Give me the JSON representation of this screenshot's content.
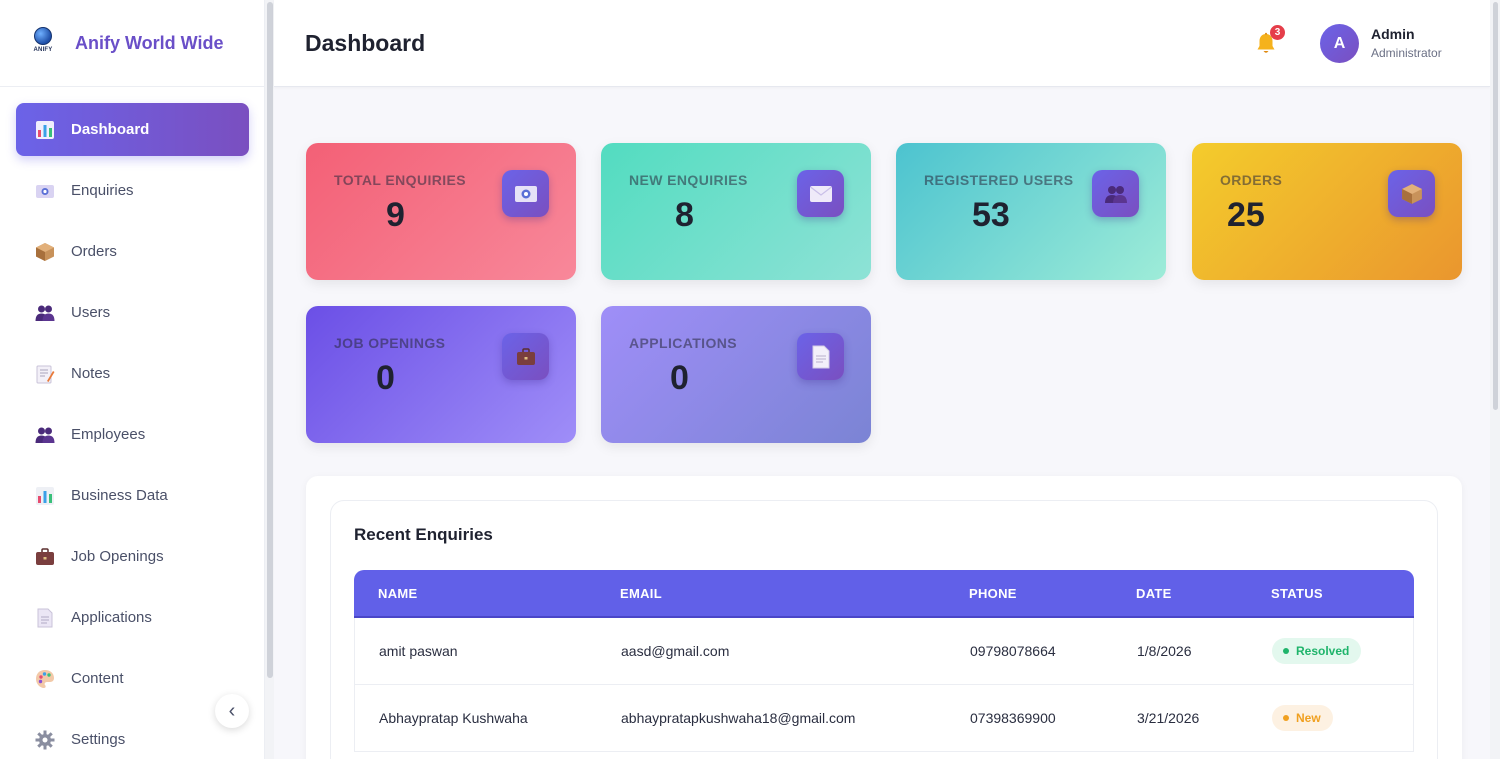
{
  "brand": {
    "name": "Anify World Wide",
    "logo_text": "ANIFY"
  },
  "sidebar": {
    "items": [
      {
        "label": "Dashboard",
        "icon": "bar-chart-icon",
        "active": true
      },
      {
        "label": "Enquiries",
        "icon": "inbox-icon"
      },
      {
        "label": "Orders",
        "icon": "package-icon"
      },
      {
        "label": "Users",
        "icon": "users-icon"
      },
      {
        "label": "Notes",
        "icon": "memo-icon"
      },
      {
        "label": "Employees",
        "icon": "users-icon"
      },
      {
        "label": "Business Data",
        "icon": "bar-chart-icon"
      },
      {
        "label": "Job Openings",
        "icon": "briefcase-icon"
      },
      {
        "label": "Applications",
        "icon": "document-icon"
      },
      {
        "label": "Content",
        "icon": "palette-icon"
      },
      {
        "label": "Settings",
        "icon": "gear-icon"
      }
    ],
    "collapse_icon": "chevron-left-icon",
    "collapse_glyph": "‹"
  },
  "header": {
    "title": "Dashboard",
    "notifications_count": "3",
    "avatar_initial": "A",
    "user_name": "Admin",
    "user_role": "Administrator"
  },
  "cards": [
    {
      "label": "Total Enquiries",
      "value": "9",
      "icon": "inbox-icon"
    },
    {
      "label": "New Enquiries",
      "value": "8",
      "icon": "envelope-icon"
    },
    {
      "label": "Registered Users",
      "value": "53",
      "icon": "users-icon"
    },
    {
      "label": "Orders",
      "value": "25",
      "icon": "package-icon"
    },
    {
      "label": "Job Openings",
      "value": "0",
      "icon": "briefcase-icon"
    },
    {
      "label": "Applications",
      "value": "0",
      "icon": "document-icon"
    }
  ],
  "recent": {
    "title": "Recent Enquiries",
    "columns": [
      "NAME",
      "EMAIL",
      "PHONE",
      "DATE",
      "STATUS"
    ],
    "rows": [
      {
        "name": "amit paswan",
        "email": "aasd@gmail.com",
        "phone": "09798078664",
        "date": "1/8/2026",
        "status": "Resolved"
      },
      {
        "name": "Abhaypratap Kushwaha",
        "email": "abhaypratapkushwaha18@gmail.com",
        "phone": "07398369900",
        "date": "3/21/2026",
        "status": "New"
      }
    ]
  },
  "colors": {
    "accent": "#6160e8",
    "accent_dark": "#7a4fc0",
    "resolved": "#1fb46b",
    "new": "#f0a020"
  }
}
